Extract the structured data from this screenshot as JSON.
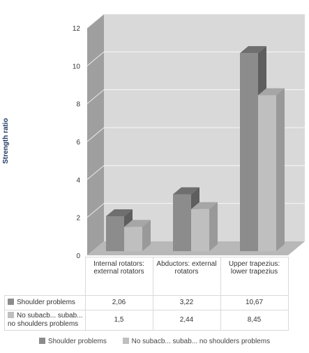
{
  "chart_data": {
    "type": "bar",
    "variant": "3d-clustered-column",
    "categories": [
      "Internal rotators: external rotators",
      "Abductors: external rotators",
      "Upper trapezius: lower trapezius"
    ],
    "series": [
      {
        "name": "Shoulder problems",
        "values": [
          2.06,
          3.22,
          10.67
        ],
        "labels": [
          "2,06",
          "3,22",
          "10,67"
        ],
        "color": "#8c8c8c"
      },
      {
        "name": "No subacb... subab... no shoulders problems",
        "values": [
          1.5,
          2.44,
          8.45
        ],
        "labels": [
          "1,5",
          "2,44",
          "8,45"
        ],
        "color": "#bfbfbf"
      }
    ],
    "ylabel": "Strength ratio",
    "ylim": [
      0,
      12
    ],
    "yticks": [
      0,
      2,
      4,
      6,
      8,
      10,
      12
    ],
    "grid": true,
    "legend": "bottom",
    "data_table": true
  },
  "table_labels": {
    "row1": "Shoulder problems",
    "row2": "No subacb... subab... no shoulders problems"
  }
}
